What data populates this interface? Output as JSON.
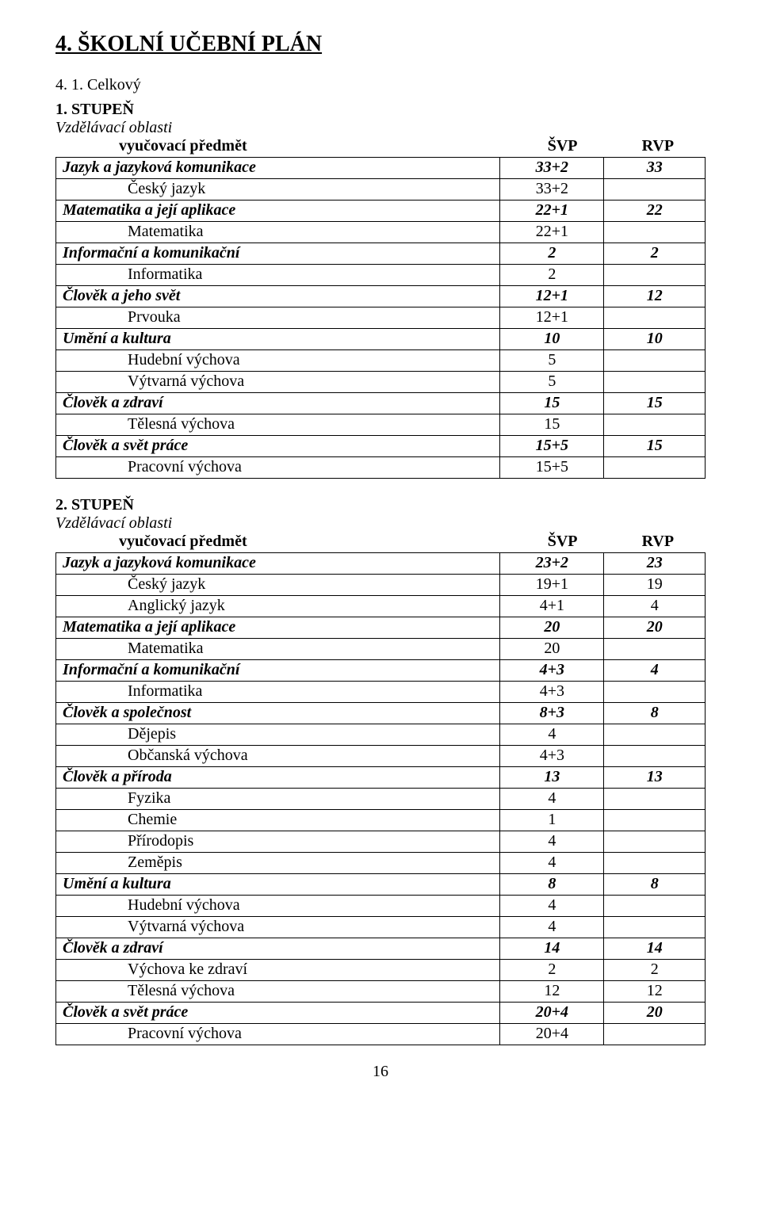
{
  "title": "4. ŠKOLNÍ UČEBNÍ PLÁN",
  "overall_label": "4. 1. Celkový",
  "col_headers": {
    "svp": "ŠVP",
    "rvp": "RVP"
  },
  "vyuc_label": "vyučovací předmět",
  "stage1": {
    "heading": "1. STUPEŇ",
    "vzdel": "Vzdělávací oblasti",
    "rows": [
      {
        "label": "Jazyk a jazyková komunikace",
        "c1": "33+2",
        "c2": "33",
        "style": "bolditalic"
      },
      {
        "label": "Český jazyk",
        "c1": "33+2",
        "c2": "",
        "indent": 1
      },
      {
        "label": "Matematika  a její aplikace",
        "c1": "22+1",
        "c2": "22",
        "style": "bolditalic"
      },
      {
        "label": "Matematika",
        "c1": "22+1",
        "c2": "",
        "indent": 1
      },
      {
        "label": "Informační a komunikační",
        "c1": "2",
        "c2": "2",
        "style": "bolditalic"
      },
      {
        "label": "Informatika",
        "c1": "2",
        "c2": "",
        "indent": 1
      },
      {
        "label": "Člověk a jeho svět",
        "c1": "12+1",
        "c2": "12",
        "style": "bolditalic"
      },
      {
        "label": "Prvouka",
        "c1": "12+1",
        "c2": "",
        "indent": 1
      },
      {
        "label": "Umění a kultura",
        "c1": "10",
        "c2": "10",
        "style": "bolditalic"
      },
      {
        "label": "Hudební výchova",
        "c1": "5",
        "c2": "",
        "indent": 1
      },
      {
        "label": "Výtvarná výchova",
        "c1": "5",
        "c2": "",
        "indent": 1
      },
      {
        "label": "Člověk a zdraví",
        "c1": "15",
        "c2": "15",
        "style": "bolditalic"
      },
      {
        "label": "Tělesná výchova",
        "c1": "15",
        "c2": "",
        "indent": 1
      },
      {
        "label": "Člověk a svět práce",
        "c1": "15+5",
        "c2": "15",
        "style": "bolditalic"
      },
      {
        "label": "Pracovní výchova",
        "c1": "15+5",
        "c2": "",
        "indent": 1
      }
    ]
  },
  "stage2": {
    "heading": "2. STUPEŇ",
    "vzdel": "Vzdělávací oblasti",
    "rows": [
      {
        "label": "Jazyk a jazyková komunikace",
        "c1": "23+2",
        "c2": "23",
        "style": "bolditalic"
      },
      {
        "label": "Český jazyk",
        "c1": "19+1",
        "c2": "19",
        "indent": 1
      },
      {
        "label": "Anglický jazyk",
        "c1": "4+1",
        "c2": "4",
        "indent": 1
      },
      {
        "label": "Matematika  a její aplikace",
        "c1": "20",
        "c2": "20",
        "style": "bolditalic"
      },
      {
        "label": "Matematika",
        "c1": "20",
        "c2": "",
        "indent": 1
      },
      {
        "label": "Informační a komunikační",
        "c1": "4+3",
        "c2": "4",
        "style": "bolditalic"
      },
      {
        "label": "Informatika",
        "c1": "4+3",
        "c2": "",
        "indent": 1
      },
      {
        "label": "Člověk a společnost",
        "c1": "8+3",
        "c2": "8",
        "style": "bolditalic"
      },
      {
        "label": "Dějepis",
        "c1": "4",
        "c2": "",
        "indent": 1
      },
      {
        "label": "Občanská výchova",
        "c1": "4+3",
        "c2": "",
        "indent": 1
      },
      {
        "label": "Člověk a příroda",
        "c1": "13",
        "c2": "13",
        "style": "bolditalic"
      },
      {
        "label": "Fyzika",
        "c1": "4",
        "c2": "",
        "indent": 1
      },
      {
        "label": "Chemie",
        "c1": "1",
        "c2": "",
        "indent": 1
      },
      {
        "label": "Přírodopis",
        "c1": "4",
        "c2": "",
        "indent": 1
      },
      {
        "label": "Zeměpis",
        "c1": "4",
        "c2": "",
        "indent": 1
      },
      {
        "label": "Umění a kultura",
        "c1": "8",
        "c2": "8",
        "style": "bolditalic"
      },
      {
        "label": "Hudební výchova",
        "c1": "4",
        "c2": "",
        "indent": 1
      },
      {
        "label": "Výtvarná výchova",
        "c1": "4",
        "c2": "",
        "indent": 1
      },
      {
        "label": "Člověk a zdraví",
        "c1": "14",
        "c2": "14",
        "style": "bolditalic"
      },
      {
        "label": "Výchova ke zdraví",
        "c1": "2",
        "c2": "2",
        "indent": 1
      },
      {
        "label": "Tělesná výchova",
        "c1": "12",
        "c2": "12",
        "indent": 1
      },
      {
        "label": "Člověk a svět práce",
        "c1": "20+4",
        "c2": "20",
        "style": "bolditalic"
      },
      {
        "label": "Pracovní výchova",
        "c1": "20+4",
        "c2": "",
        "indent": 1
      }
    ]
  },
  "page_number": "16"
}
